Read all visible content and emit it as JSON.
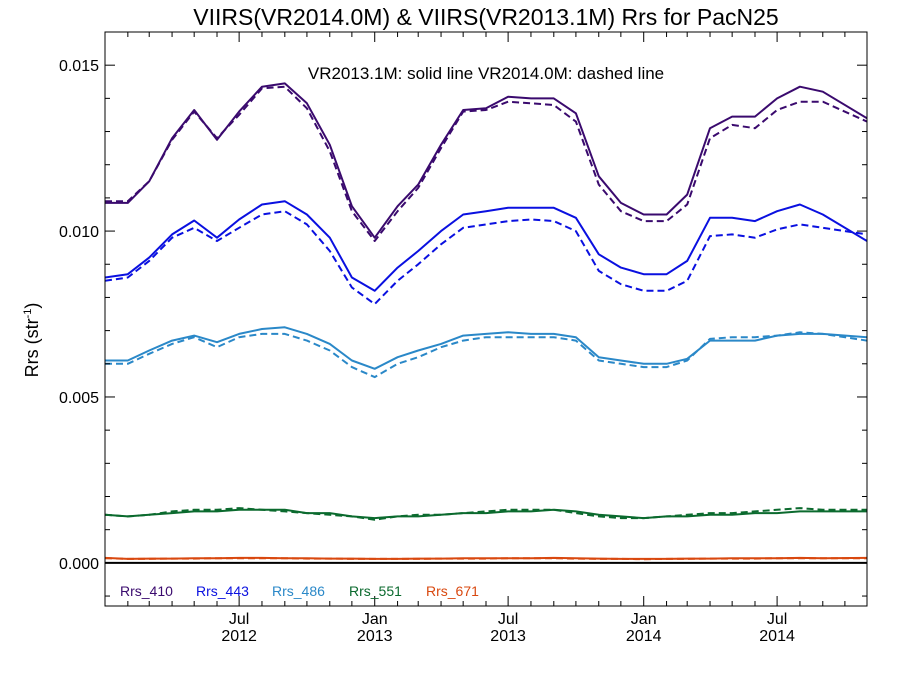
{
  "chart_data": {
    "type": "line",
    "title": "VIIRS(VR2014.0M) & VIIRS(VR2013.1M)  Rrs for PacN25",
    "annotation": "VR2013.1M: solid line   VR2014.0M: dashed line",
    "ylabel": "Rrs (str",
    "ylabel_sup": "-1",
    "ylabel_close": ")",
    "xlim": [
      "2012-01-01",
      "2014-10-31"
    ],
    "ylim": [
      -0.0013,
      0.016
    ],
    "y_ticks": [
      {
        "value": 0.0,
        "label": "0.000"
      },
      {
        "value": 0.005,
        "label": "0.005"
      },
      {
        "value": 0.01,
        "label": "0.010"
      },
      {
        "value": 0.015,
        "label": "0.015"
      }
    ],
    "x_ticks": [
      {
        "date": "2012-07-01",
        "month": "Jul",
        "year": "2012"
      },
      {
        "date": "2013-01-01",
        "month": "Jan",
        "year": "2013"
      },
      {
        "date": "2013-07-01",
        "month": "Jul",
        "year": "2013"
      },
      {
        "date": "2014-01-01",
        "month": "Jan",
        "year": "2014"
      },
      {
        "date": "2014-07-01",
        "month": "Jul",
        "year": "2014"
      }
    ],
    "x": [
      "2012-01-01",
      "2012-02-01",
      "2012-03-01",
      "2012-04-01",
      "2012-05-01",
      "2012-06-01",
      "2012-07-01",
      "2012-08-01",
      "2012-09-01",
      "2012-10-01",
      "2012-11-01",
      "2012-12-01",
      "2013-01-01",
      "2013-02-01",
      "2013-03-01",
      "2013-04-01",
      "2013-05-01",
      "2013-06-01",
      "2013-07-01",
      "2013-08-01",
      "2013-09-01",
      "2013-10-01",
      "2013-11-01",
      "2013-12-01",
      "2014-01-01",
      "2014-02-01",
      "2014-03-01",
      "2014-04-01",
      "2014-05-01",
      "2014-06-01",
      "2014-07-01",
      "2014-08-01",
      "2014-09-01",
      "2014-10-31"
    ],
    "series": [
      {
        "name": "Rrs_410",
        "version": "VR2013.1M",
        "style": "solid",
        "color": "#3a0a6e",
        "values": [
          0.01085,
          0.01085,
          0.0115,
          0.0128,
          0.01365,
          0.01275,
          0.0136,
          0.01435,
          0.01445,
          0.01385,
          0.0126,
          0.01075,
          0.0098,
          0.01075,
          0.0114,
          0.0126,
          0.01365,
          0.0137,
          0.01405,
          0.014,
          0.014,
          0.01355,
          0.01165,
          0.01085,
          0.0105,
          0.0105,
          0.0111,
          0.0131,
          0.01345,
          0.01345,
          0.014,
          0.01435,
          0.0142,
          0.0134
        ]
      },
      {
        "name": "Rrs_410",
        "version": "VR2014.0M",
        "style": "dashed",
        "color": "#3a0a6e",
        "values": [
          0.0109,
          0.0109,
          0.0115,
          0.01275,
          0.0136,
          0.0128,
          0.0135,
          0.0143,
          0.01435,
          0.0137,
          0.0124,
          0.0106,
          0.0097,
          0.0106,
          0.0113,
          0.0125,
          0.0136,
          0.01365,
          0.0139,
          0.01385,
          0.0138,
          0.0133,
          0.0114,
          0.0106,
          0.0103,
          0.0103,
          0.0108,
          0.0128,
          0.0132,
          0.0131,
          0.01365,
          0.0139,
          0.0139,
          0.0133
        ]
      },
      {
        "name": "Rrs_443",
        "version": "VR2013.1M",
        "style": "solid",
        "color": "#0a10e0",
        "values": [
          0.0086,
          0.0087,
          0.0092,
          0.0099,
          0.01032,
          0.0098,
          0.01035,
          0.0108,
          0.0109,
          0.0105,
          0.0098,
          0.0086,
          0.0082,
          0.0089,
          0.0094,
          0.01,
          0.0105,
          0.0106,
          0.0107,
          0.0107,
          0.0107,
          0.0104,
          0.0093,
          0.0089,
          0.0087,
          0.0087,
          0.0091,
          0.0104,
          0.0104,
          0.0103,
          0.0106,
          0.0108,
          0.0105,
          0.0097
        ]
      },
      {
        "name": "Rrs_443",
        "version": "VR2014.0M",
        "style": "dashed",
        "color": "#0a10e0",
        "values": [
          0.0085,
          0.0086,
          0.0091,
          0.0098,
          0.0101,
          0.0097,
          0.0101,
          0.0105,
          0.0106,
          0.0102,
          0.0094,
          0.0083,
          0.0078,
          0.0085,
          0.009,
          0.0096,
          0.0101,
          0.0102,
          0.0103,
          0.01035,
          0.0103,
          0.01,
          0.0088,
          0.0084,
          0.0082,
          0.0082,
          0.0085,
          0.00985,
          0.0099,
          0.0098,
          0.01005,
          0.0102,
          0.0101,
          0.0099
        ]
      },
      {
        "name": "Rrs_486",
        "version": "VR2013.1M",
        "style": "solid",
        "color": "#2a88c8",
        "values": [
          0.0061,
          0.0061,
          0.0064,
          0.0067,
          0.00685,
          0.00665,
          0.0069,
          0.00705,
          0.0071,
          0.0069,
          0.0066,
          0.0061,
          0.00585,
          0.0062,
          0.0064,
          0.0066,
          0.00685,
          0.0069,
          0.00695,
          0.0069,
          0.0069,
          0.0068,
          0.0062,
          0.0061,
          0.006,
          0.006,
          0.00615,
          0.0067,
          0.0067,
          0.0067,
          0.00685,
          0.0069,
          0.0069,
          0.0068
        ]
      },
      {
        "name": "Rrs_486",
        "version": "VR2014.0M",
        "style": "dashed",
        "color": "#2a88c8",
        "values": [
          0.006,
          0.006,
          0.0063,
          0.0066,
          0.0068,
          0.0065,
          0.0068,
          0.0069,
          0.0069,
          0.0067,
          0.0064,
          0.0059,
          0.0056,
          0.006,
          0.0062,
          0.0065,
          0.0067,
          0.0068,
          0.0068,
          0.0068,
          0.0068,
          0.0067,
          0.0061,
          0.006,
          0.0059,
          0.0059,
          0.0061,
          0.00675,
          0.0068,
          0.0068,
          0.00685,
          0.00695,
          0.0069,
          0.0067
        ]
      },
      {
        "name": "Rrs_551",
        "version": "VR2013.1M",
        "style": "solid",
        "color": "#0b6a2e",
        "values": [
          0.00145,
          0.0014,
          0.00145,
          0.0015,
          0.00155,
          0.00155,
          0.0016,
          0.0016,
          0.0016,
          0.0015,
          0.0015,
          0.0014,
          0.00135,
          0.0014,
          0.0014,
          0.00145,
          0.0015,
          0.0015,
          0.00155,
          0.00155,
          0.0016,
          0.00155,
          0.00145,
          0.0014,
          0.00135,
          0.0014,
          0.0014,
          0.00145,
          0.00145,
          0.0015,
          0.0015,
          0.00155,
          0.00155,
          0.00155
        ]
      },
      {
        "name": "Rrs_551",
        "version": "VR2014.0M",
        "style": "dashed",
        "color": "#0b6a2e",
        "values": [
          0.00145,
          0.0014,
          0.00145,
          0.00155,
          0.0016,
          0.0016,
          0.00165,
          0.0016,
          0.00155,
          0.0015,
          0.00145,
          0.0014,
          0.0013,
          0.0014,
          0.00145,
          0.00145,
          0.0015,
          0.00155,
          0.0016,
          0.0016,
          0.0016,
          0.0015,
          0.0014,
          0.00135,
          0.00135,
          0.0014,
          0.00145,
          0.0015,
          0.0015,
          0.00155,
          0.0016,
          0.00165,
          0.0016,
          0.0016
        ]
      },
      {
        "name": "Rrs_671",
        "version": "VR2013.1M",
        "style": "solid",
        "color": "#d9480f",
        "values": [
          0.00015,
          0.00012,
          0.00013,
          0.00013,
          0.00014,
          0.00014,
          0.00015,
          0.00015,
          0.00014,
          0.00014,
          0.00013,
          0.00013,
          0.00012,
          0.00012,
          0.00013,
          0.00013,
          0.00014,
          0.00014,
          0.00014,
          0.00014,
          0.00015,
          0.00014,
          0.00013,
          0.00012,
          0.00012,
          0.00012,
          0.00013,
          0.00013,
          0.00014,
          0.00014,
          0.00014,
          0.00015,
          0.00014,
          0.00015
        ]
      },
      {
        "name": "Rrs_671",
        "version": "VR2014.0M",
        "style": "dashed",
        "color": "#d9480f",
        "values": [
          0.00014,
          0.00012,
          0.00012,
          0.00013,
          0.00013,
          0.00014,
          0.00014,
          0.00014,
          0.00014,
          0.00013,
          0.00013,
          0.00012,
          0.00012,
          0.00012,
          0.00012,
          0.00013,
          0.00013,
          0.00013,
          0.00014,
          0.00014,
          0.00014,
          0.00013,
          0.00012,
          0.00012,
          0.00011,
          0.00012,
          0.00012,
          0.00013,
          0.00013,
          0.00013,
          0.00014,
          0.00014,
          0.00014,
          0.00014
        ]
      }
    ],
    "legend": [
      {
        "name": "Rrs_410",
        "color": "#3a0a6e"
      },
      {
        "name": "Rrs_443",
        "color": "#0a10e0"
      },
      {
        "name": "Rrs_486",
        "color": "#2a88c8"
      },
      {
        "name": "Rrs_551",
        "color": "#0b6a2e"
      },
      {
        "name": "Rrs_671",
        "color": "#d9480f"
      }
    ],
    "legend_position": "bottom-left",
    "grid": false,
    "zero_line": true
  }
}
